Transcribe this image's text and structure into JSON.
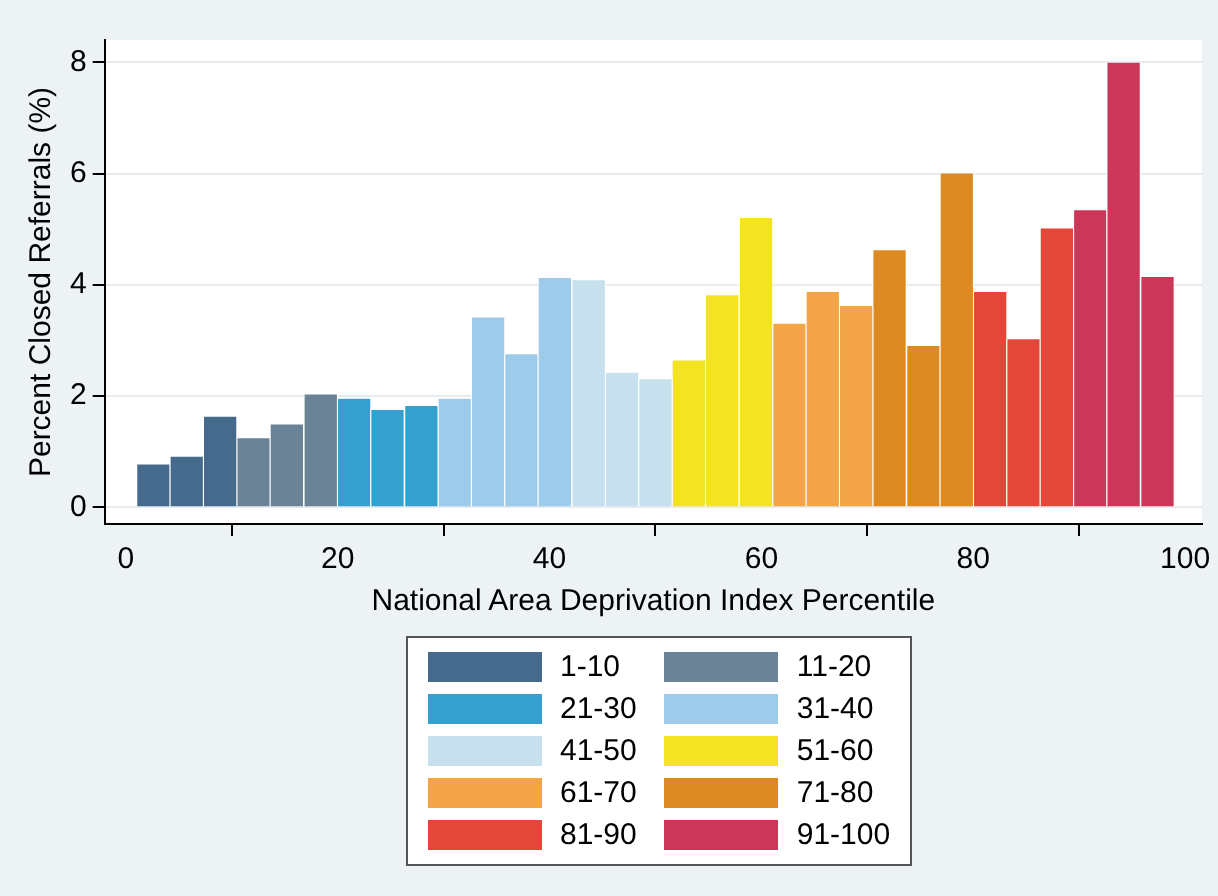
{
  "chart_data": {
    "type": "histogram",
    "xlabel": "National Area Deprivation Index Percentile",
    "ylabel": "Percent Closed Referrals (%)",
    "bins": [
      1.0,
      4.2,
      7.3,
      10.5,
      13.6,
      16.8,
      20.0,
      23.1,
      26.3,
      29.5,
      32.6,
      35.8,
      38.9,
      42.1,
      45.3,
      48.4,
      51.6,
      54.7,
      57.9,
      61.1,
      64.2,
      67.4,
      70.5,
      73.7,
      76.9,
      80.0,
      83.2,
      86.3,
      89.5,
      92.6,
      95.8,
      99.0
    ],
    "series": [
      {
        "name": "1-10",
        "color": "#466a8c",
        "values": [
          0.77,
          0.91,
          1.63,
          null,
          null,
          null,
          null,
          null,
          null,
          null,
          null,
          null,
          null,
          null,
          null,
          null,
          null,
          null,
          null,
          null,
          null,
          null,
          null,
          null,
          null,
          null,
          null,
          null,
          null,
          null,
          null
        ]
      },
      {
        "name": "11-20",
        "color": "#6a8397",
        "values": [
          null,
          null,
          null,
          1.24,
          1.49,
          2.03,
          null,
          null,
          null,
          null,
          null,
          null,
          null,
          null,
          null,
          null,
          null,
          null,
          null,
          null,
          null,
          null,
          null,
          null,
          null,
          null,
          null,
          null,
          null,
          null,
          null
        ]
      },
      {
        "name": "21-30",
        "color": "#35a0cf",
        "values": [
          null,
          null,
          null,
          null,
          null,
          null,
          1.95,
          1.75,
          1.82,
          null,
          null,
          null,
          null,
          null,
          null,
          null,
          null,
          null,
          null,
          null,
          null,
          null,
          null,
          null,
          null,
          null,
          null,
          null,
          null,
          null,
          null
        ]
      },
      {
        "name": "31-40",
        "color": "#9fcbeb",
        "values": [
          null,
          null,
          null,
          null,
          null,
          null,
          null,
          null,
          null,
          1.95,
          3.41,
          2.75,
          4.12,
          null,
          null,
          null,
          null,
          null,
          null,
          null,
          null,
          null,
          null,
          null,
          null,
          null,
          null,
          null,
          null,
          null,
          null
        ]
      },
      {
        "name": "41-50",
        "color": "#c6e1ed",
        "values": [
          null,
          null,
          null,
          null,
          null,
          null,
          null,
          null,
          null,
          null,
          null,
          null,
          null,
          4.08,
          2.42,
          2.3,
          null,
          null,
          null,
          null,
          null,
          null,
          null,
          null,
          null,
          null,
          null,
          null,
          null,
          null,
          null
        ]
      },
      {
        "name": "51-60",
        "color": "#f4e323",
        "values": [
          null,
          null,
          null,
          null,
          null,
          null,
          null,
          null,
          null,
          null,
          null,
          null,
          null,
          null,
          null,
          null,
          2.64,
          3.81,
          5.2,
          null,
          null,
          null,
          null,
          null,
          null,
          null,
          null,
          null,
          null,
          null,
          null
        ]
      },
      {
        "name": "61-70",
        "color": "#f2a446",
        "values": [
          null,
          null,
          null,
          null,
          null,
          null,
          null,
          null,
          null,
          null,
          null,
          null,
          null,
          null,
          null,
          null,
          null,
          null,
          null,
          3.3,
          3.87,
          3.62,
          null,
          null,
          null,
          null,
          null,
          null,
          null,
          null,
          null
        ]
      },
      {
        "name": "71-80",
        "color": "#dd8a22",
        "values": [
          null,
          null,
          null,
          null,
          null,
          null,
          null,
          null,
          null,
          null,
          null,
          null,
          null,
          null,
          null,
          null,
          null,
          null,
          null,
          null,
          null,
          null,
          4.62,
          2.9,
          6.0,
          null,
          null,
          null,
          null,
          null,
          null
        ]
      },
      {
        "name": "81-90",
        "color": "#e5463a",
        "values": [
          null,
          null,
          null,
          null,
          null,
          null,
          null,
          null,
          null,
          null,
          null,
          null,
          null,
          null,
          null,
          null,
          null,
          null,
          null,
          null,
          null,
          null,
          null,
          null,
          null,
          3.87,
          3.02,
          5.01,
          null,
          null,
          null
        ]
      },
      {
        "name": "91-100",
        "color": "#cc3659",
        "values": [
          null,
          null,
          null,
          null,
          null,
          null,
          null,
          null,
          null,
          null,
          null,
          null,
          null,
          null,
          null,
          null,
          null,
          null,
          null,
          null,
          null,
          null,
          null,
          null,
          null,
          null,
          null,
          null,
          5.34,
          7.99,
          4.14
        ]
      }
    ],
    "xlim": [
      -2,
      101.6
    ],
    "ylim": [
      -0.3,
      8.4
    ],
    "xticks": [
      0,
      20,
      40,
      60,
      80,
      100
    ],
    "yticks": [
      0,
      2,
      4,
      6,
      8
    ],
    "grid": "y",
    "legend": "bottom"
  }
}
